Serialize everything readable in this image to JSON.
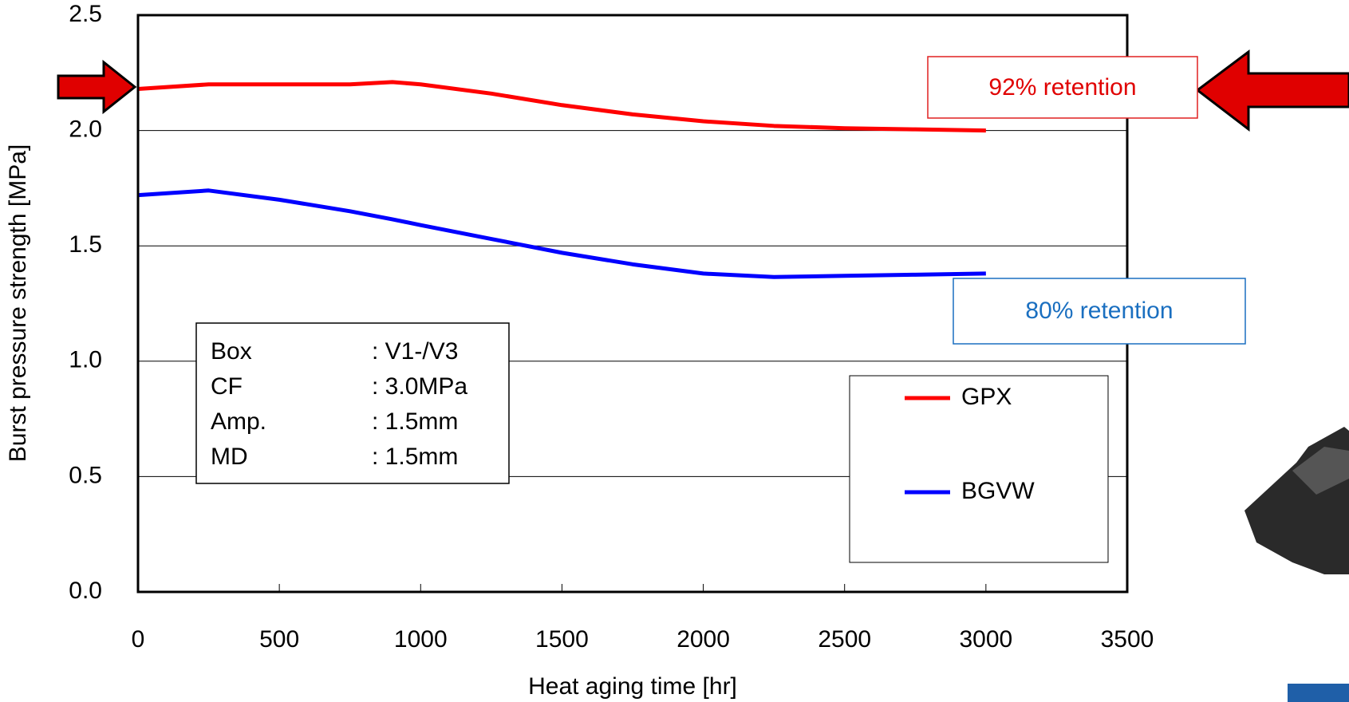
{
  "chart_data": {
    "type": "line",
    "y_label": "Burst pressure strength [MPa]",
    "x_label": "Heat aging time [hr]",
    "x": [
      0,
      250,
      500,
      750,
      900,
      1000,
      1250,
      1500,
      1750,
      2000,
      2250,
      2500,
      2750,
      3000
    ],
    "series": [
      {
        "name": "GPX",
        "color": "#ff0000",
        "values": [
          2.18,
          2.2,
          2.2,
          2.2,
          2.21,
          2.2,
          2.16,
          2.11,
          2.07,
          2.04,
          2.02,
          2.01,
          2.005,
          2.0
        ]
      },
      {
        "name": "BGVW",
        "color": "#0000ff",
        "values": [
          1.72,
          1.74,
          1.7,
          1.65,
          1.615,
          1.59,
          1.53,
          1.47,
          1.42,
          1.38,
          1.365,
          1.37,
          1.375,
          1.38
        ]
      }
    ],
    "xlim": [
      0,
      3500
    ],
    "xticks": [
      0,
      500,
      1000,
      1500,
      2000,
      2500,
      3000,
      3500
    ],
    "ylim": [
      0,
      2.5
    ],
    "yticks": [
      {
        "value": 0,
        "label": "0.0"
      },
      0.5,
      {
        "value": 1,
        "label": "1.0"
      },
      1.5,
      {
        "value": 2,
        "label": "2.0"
      },
      2.5
    ],
    "grid": true,
    "legend": "lower right",
    "annotations": [
      "92% retention",
      "80% retention"
    ],
    "info_box": [
      [
        "Box",
        ": V1-/V3"
      ],
      [
        "CF",
        ": 3.0MPa"
      ],
      [
        "Amp.",
        ": 1.5mm"
      ],
      [
        "MD",
        ": 1.5mm"
      ]
    ]
  }
}
